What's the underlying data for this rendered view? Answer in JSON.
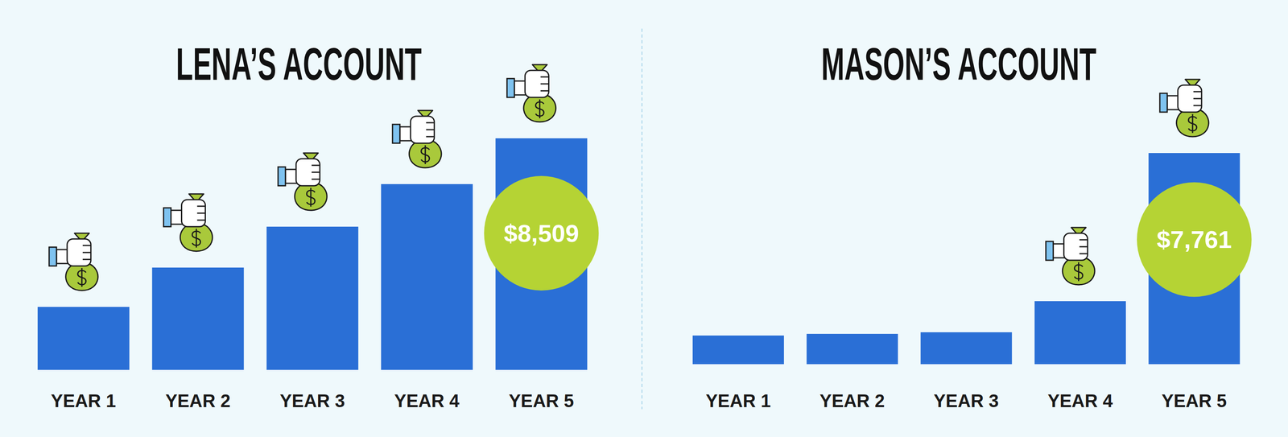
{
  "chart_data": [
    {
      "type": "bar",
      "title": "LENA’S ACCOUNT",
      "categories": [
        "YEAR 1",
        "YEAR 2",
        "YEAR 3",
        "YEAR 4",
        "YEAR 5"
      ],
      "values": [
        2315,
        3759,
        5262,
        6826,
        8509
      ],
      "value_labels": [
        null,
        null,
        null,
        null,
        "$8,509"
      ],
      "color": "#2a6fd6",
      "tick_labels": "x"
    },
    {
      "type": "bar",
      "title": "MASON’S ACCOUNT",
      "categories": [
        "YEAR 1",
        "YEAR 2",
        "YEAR 3",
        "YEAR 4",
        "YEAR 5"
      ],
      "values": [
        1053,
        1113,
        1173,
        2316,
        7761
      ],
      "value_labels": [
        null,
        null,
        null,
        null,
        "$7,761"
      ],
      "color": "#2a6fd6",
      "tick_labels": "x"
    }
  ]
}
